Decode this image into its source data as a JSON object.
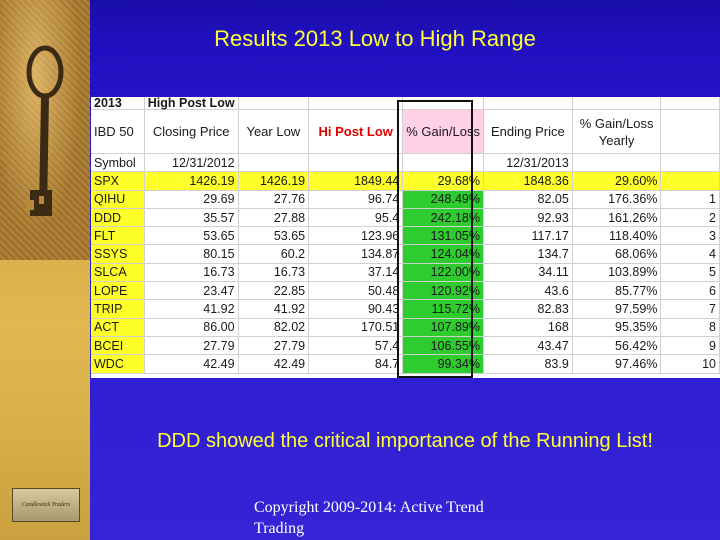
{
  "slide": {
    "title": "Results 2013 Low to High Range",
    "subtitle": "DDD showed the critical importance of the Running List!",
    "copyright": "Copyright 2009-2014: Active Trend Trading",
    "logo_text": "Candlestick Traders"
  },
  "table": {
    "header_row1": [
      "2013",
      "High Post Low",
      "",
      "",
      "",
      "",
      "",
      ""
    ],
    "header_row2": [
      "IBD 50",
      "Closing Price",
      "Year Low",
      "Hi Post Low",
      "% Gain/Loss",
      "Ending Price",
      "% Gain/Loss Yearly",
      ""
    ],
    "header_row3": [
      "Symbol",
      "12/31/2012",
      "",
      "",
      "",
      "12/31/2013",
      "",
      ""
    ],
    "rows": [
      {
        "symbol": "SPX",
        "close": "1426.19",
        "low": "1426.19",
        "hi": "1849.44",
        "gain": "29.68%",
        "end": "1848.36",
        "yearly": "29.60%",
        "rank": ""
      },
      {
        "symbol": "QIHU",
        "close": "29.69",
        "low": "27.76",
        "hi": "96.74",
        "gain": "248.49%",
        "end": "82.05",
        "yearly": "176.36%",
        "rank": "1"
      },
      {
        "symbol": "DDD",
        "close": "35.57",
        "low": "27.88",
        "hi": "95.4",
        "gain": "242.18%",
        "end": "92.93",
        "yearly": "161.26%",
        "rank": "2"
      },
      {
        "symbol": "FLT",
        "close": "53.65",
        "low": "53.65",
        "hi": "123.96",
        "gain": "131.05%",
        "end": "117.17",
        "yearly": "118.40%",
        "rank": "3"
      },
      {
        "symbol": "SSYS",
        "close": "80.15",
        "low": "60.2",
        "hi": "134.87",
        "gain": "124.04%",
        "end": "134.7",
        "yearly": "68.06%",
        "rank": "4"
      },
      {
        "symbol": "SLCA",
        "close": "16.73",
        "low": "16.73",
        "hi": "37.14",
        "gain": "122.00%",
        "end": "34.11",
        "yearly": "103.89%",
        "rank": "5"
      },
      {
        "symbol": "LOPE",
        "close": "23.47",
        "low": "22.85",
        "hi": "50.48",
        "gain": "120.92%",
        "end": "43.6",
        "yearly": "85.77%",
        "rank": "6"
      },
      {
        "symbol": "TRIP",
        "close": "41.92",
        "low": "41.92",
        "hi": "90.43",
        "gain": "115.72%",
        "end": "82.83",
        "yearly": "97.59%",
        "rank": "7"
      },
      {
        "symbol": "ACT",
        "close": "86.00",
        "low": "82.02",
        "hi": "170.51",
        "gain": "107.89%",
        "end": "168",
        "yearly": "95.35%",
        "rank": "8"
      },
      {
        "symbol": "BCEI",
        "close": "27.79",
        "low": "27.79",
        "hi": "57.4",
        "gain": "106.55%",
        "end": "43.47",
        "yearly": "56.42%",
        "rank": "9"
      },
      {
        "symbol": "WDC",
        "close": "42.49",
        "low": "42.49",
        "hi": "84.7",
        "gain": "99.34%",
        "end": "83.9",
        "yearly": "97.46%",
        "rank": "10"
      }
    ]
  },
  "colors": {
    "background": "#2a1acd",
    "title_text": "#ffff33",
    "highlight_yellow": "#ffff2a",
    "gain_green": "#2ecc2e",
    "hi_post_low_red": "#e00000",
    "gain_header_pink": "#ffd0e6"
  },
  "icons": {
    "decoration": "antique-key-icon"
  }
}
